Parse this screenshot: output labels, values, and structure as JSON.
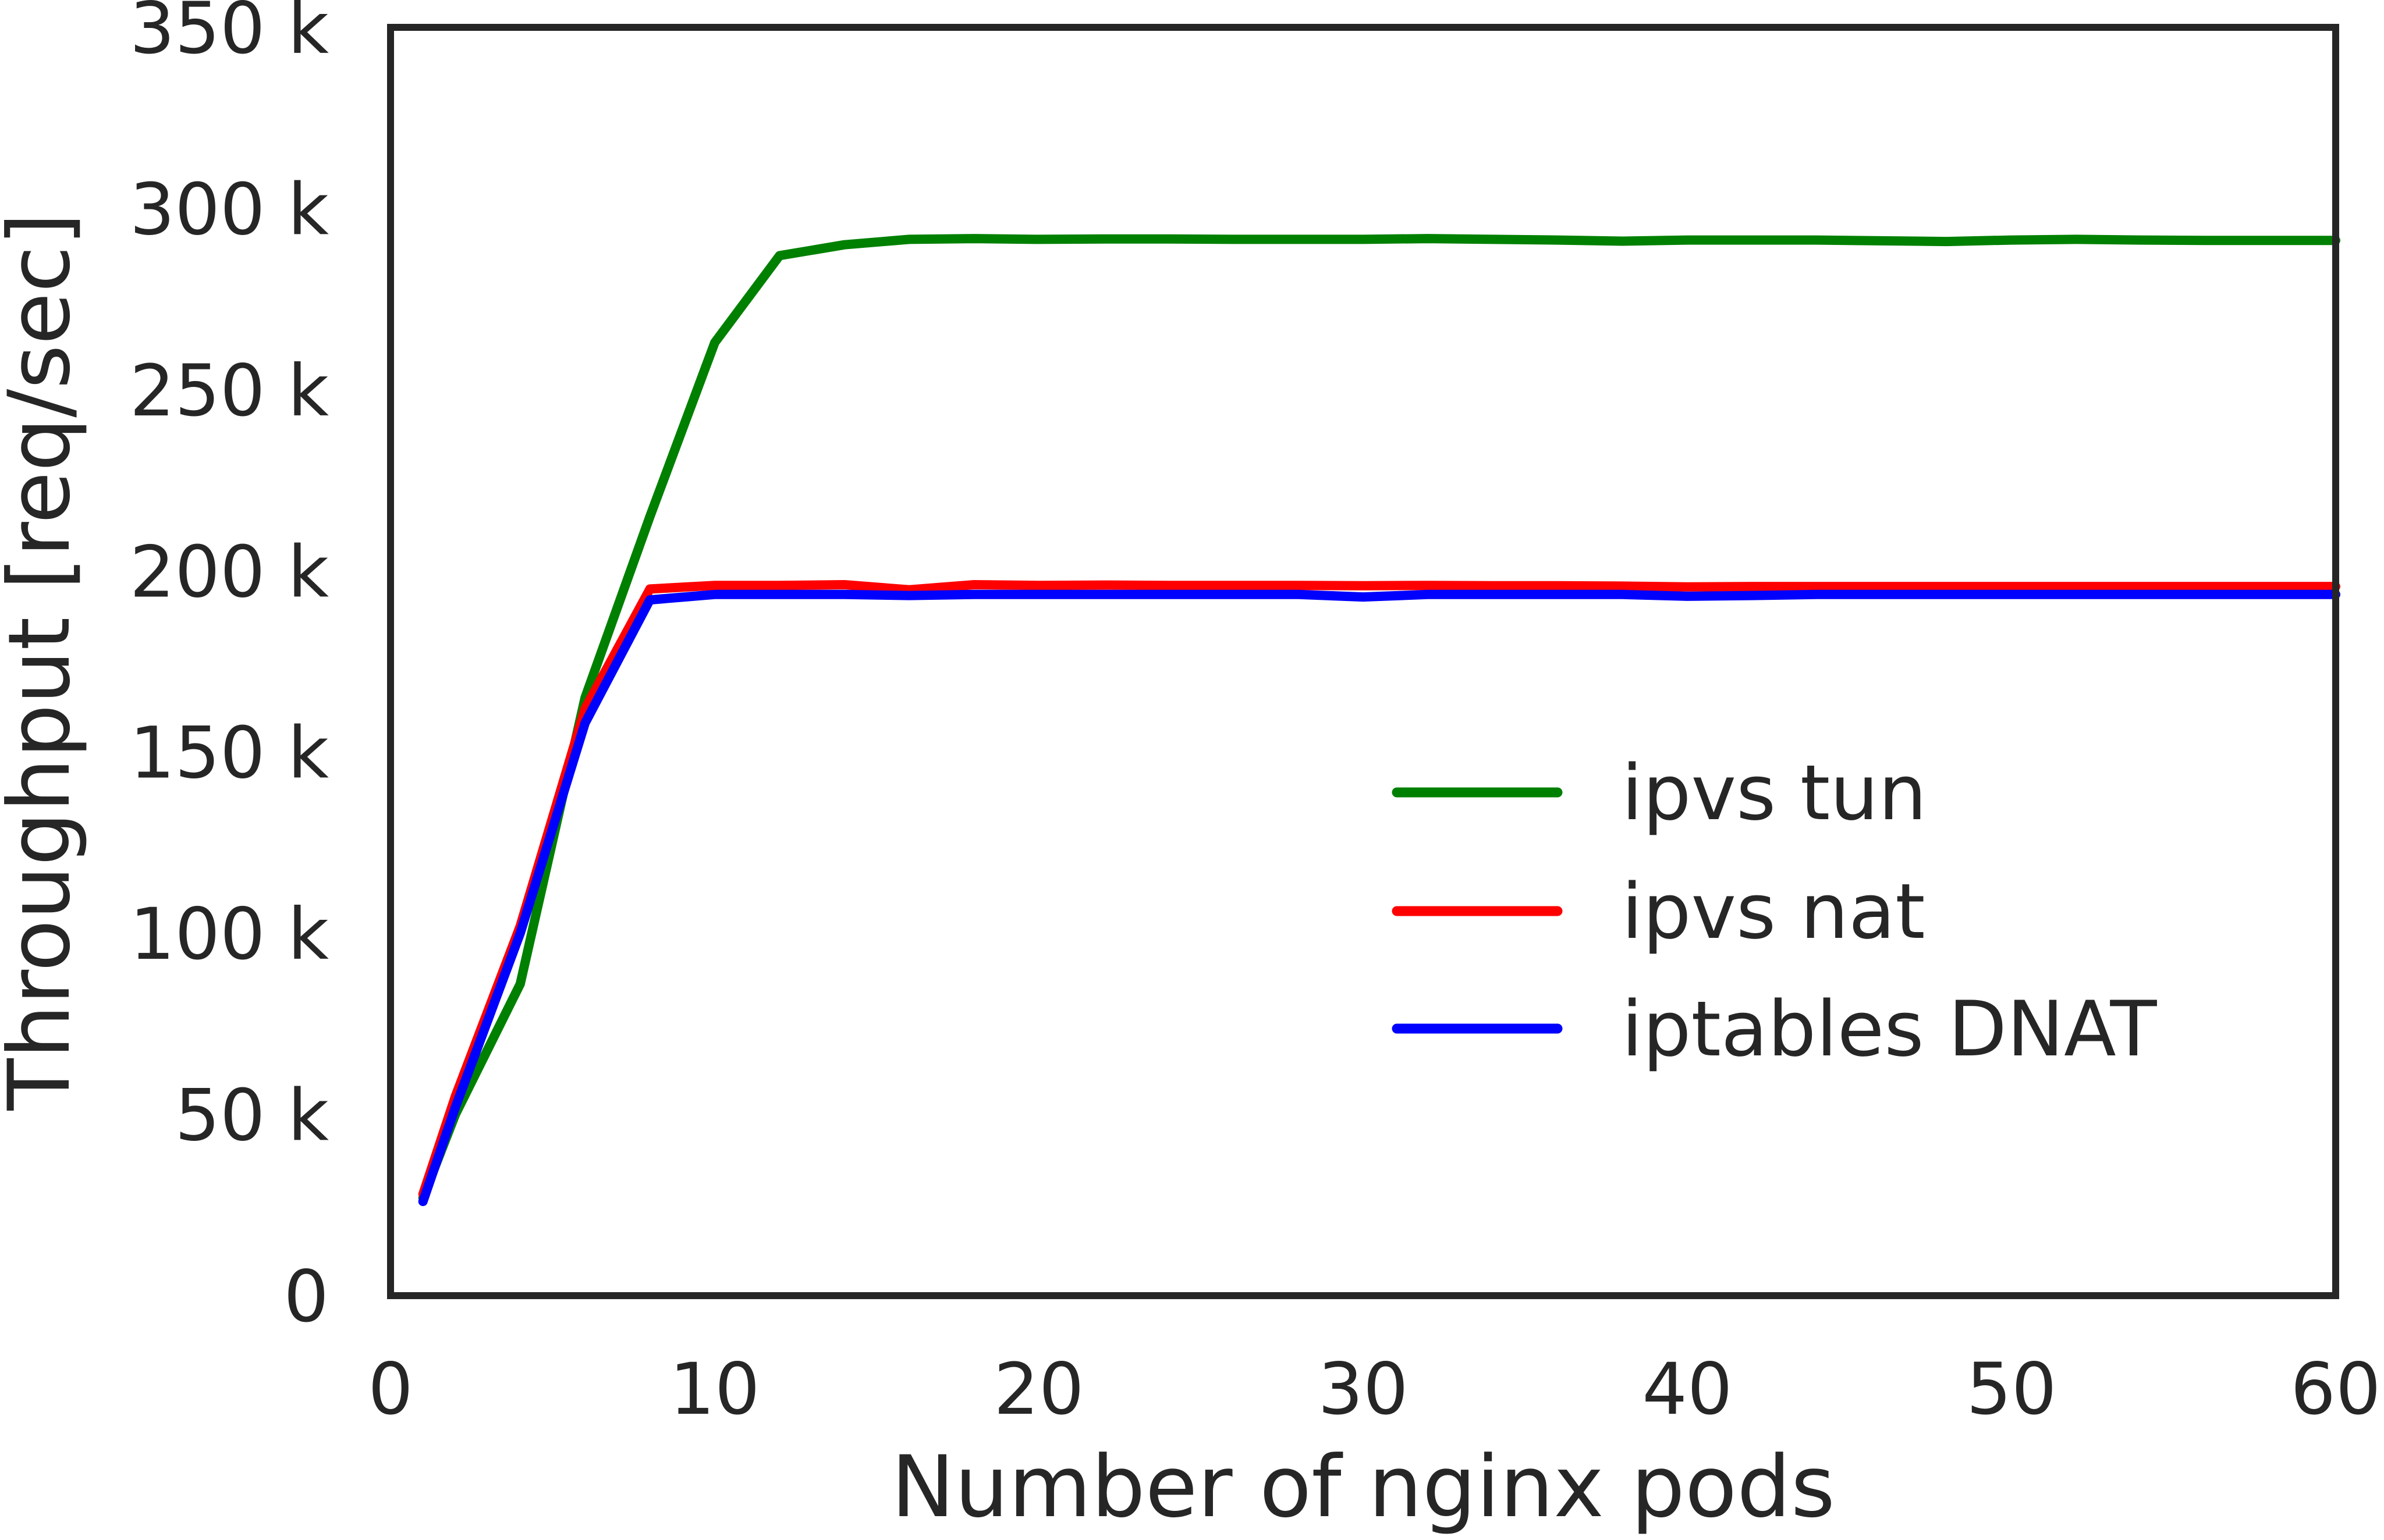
{
  "chart_data": {
    "type": "line",
    "title": "",
    "xlabel": "Number of nginx pods",
    "ylabel": "Throughput [req/sec]",
    "xlim": [
      0,
      60
    ],
    "ylim": [
      0,
      350000
    ],
    "xticks": [
      0,
      10,
      20,
      30,
      40,
      50,
      60
    ],
    "xtick_labels": [
      "0",
      "10",
      "20",
      "30",
      "40",
      "50",
      "60"
    ],
    "yticks": [
      0,
      50000,
      100000,
      150000,
      200000,
      250000,
      300000,
      350000
    ],
    "ytick_labels": [
      "0",
      "50 k",
      "100 k",
      "150 k",
      "200 k",
      "250 k",
      "300 k",
      "350 k"
    ],
    "grid": false,
    "legend_position": "center-right",
    "x": [
      1,
      2,
      4,
      6,
      8,
      10,
      12,
      14,
      16,
      18,
      20,
      22,
      24,
      26,
      28,
      30,
      32,
      34,
      36,
      38,
      40,
      42,
      44,
      46,
      48,
      50,
      52,
      54,
      56,
      58,
      60
    ],
    "series": [
      {
        "name": "ipvs tun",
        "color": "#008000",
        "values": [
          27000,
          50000,
          86000,
          165000,
          215000,
          263000,
          287000,
          290000,
          291500,
          291700,
          291500,
          291600,
          291600,
          291500,
          291500,
          291500,
          291700,
          291500,
          291300,
          291000,
          291300,
          291300,
          291300,
          291100,
          290900,
          291300,
          291500,
          291300,
          291200,
          291200,
          291200
        ]
      },
      {
        "name": "ipvs nat",
        "color": "#ff0000",
        "values": [
          28000,
          55000,
          102000,
          162000,
          195000,
          196000,
          196000,
          196200,
          194800,
          196200,
          196000,
          196100,
          196000,
          196000,
          196000,
          195900,
          196000,
          195900,
          195900,
          195800,
          195600,
          195700,
          195700,
          195700,
          195700,
          195700,
          195700,
          195700,
          195700,
          195700,
          195700
        ]
      },
      {
        "name": "iptables DNAT",
        "color": "#0000ff",
        "values": [
          26000,
          52000,
          100000,
          158000,
          192000,
          193500,
          193500,
          193500,
          193200,
          193500,
          193500,
          193500,
          193500,
          193500,
          193500,
          192800,
          193500,
          193500,
          193500,
          193500,
          193000,
          193200,
          193500,
          193500,
          193500,
          193500,
          193500,
          193500,
          193500,
          193500,
          193500
        ]
      }
    ]
  }
}
